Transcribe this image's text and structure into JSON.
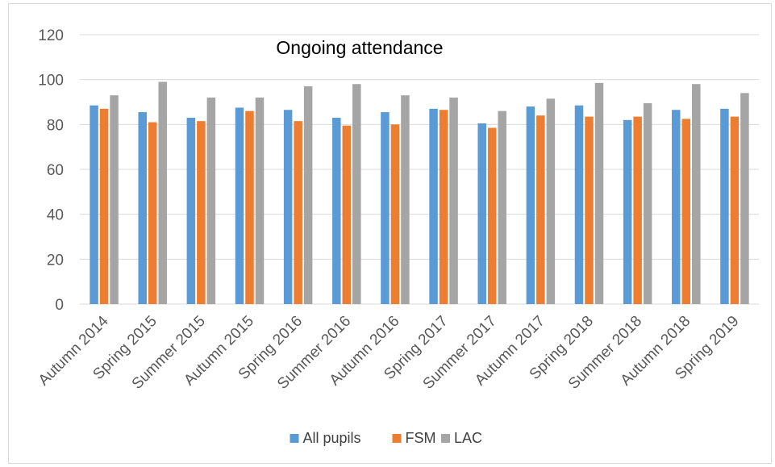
{
  "chart_data": {
    "type": "bar",
    "title": "Ongoing attendance",
    "xlabel": "",
    "ylabel": "",
    "ylim": [
      0,
      120
    ],
    "yticks": [
      0,
      20,
      40,
      60,
      80,
      100,
      120
    ],
    "grid": true,
    "legend_position": "bottom",
    "categories": [
      "Autumn 2014",
      "Spring 2015",
      "Summer 2015",
      "Autumn 2015",
      "Spring 2016",
      "Summer 2016",
      "Autumn 2016",
      "Spring 2017",
      "Summer 2017",
      "Autumn 2017",
      "Spring 2018",
      "Summer 2018",
      "Autumn 2018",
      "Spring 2019"
    ],
    "series": [
      {
        "name": "All pupils",
        "color": "#5b9bd5",
        "values": [
          88.5,
          85.5,
          83,
          87.5,
          86.5,
          83,
          85.5,
          87,
          80.5,
          88,
          88.5,
          82,
          86.5,
          87
        ]
      },
      {
        "name": "FSM",
        "color": "#ed7d31",
        "values": [
          87,
          81,
          81.5,
          86,
          81.5,
          79.5,
          80,
          86.5,
          78.5,
          84,
          83.5,
          83.5,
          82.5,
          83.5
        ]
      },
      {
        "name": "LAC",
        "color": "#a5a5a5",
        "values": [
          93,
          99,
          92,
          92,
          97,
          98,
          93,
          92,
          86,
          91.5,
          98.5,
          89.5,
          98,
          94
        ]
      }
    ]
  }
}
